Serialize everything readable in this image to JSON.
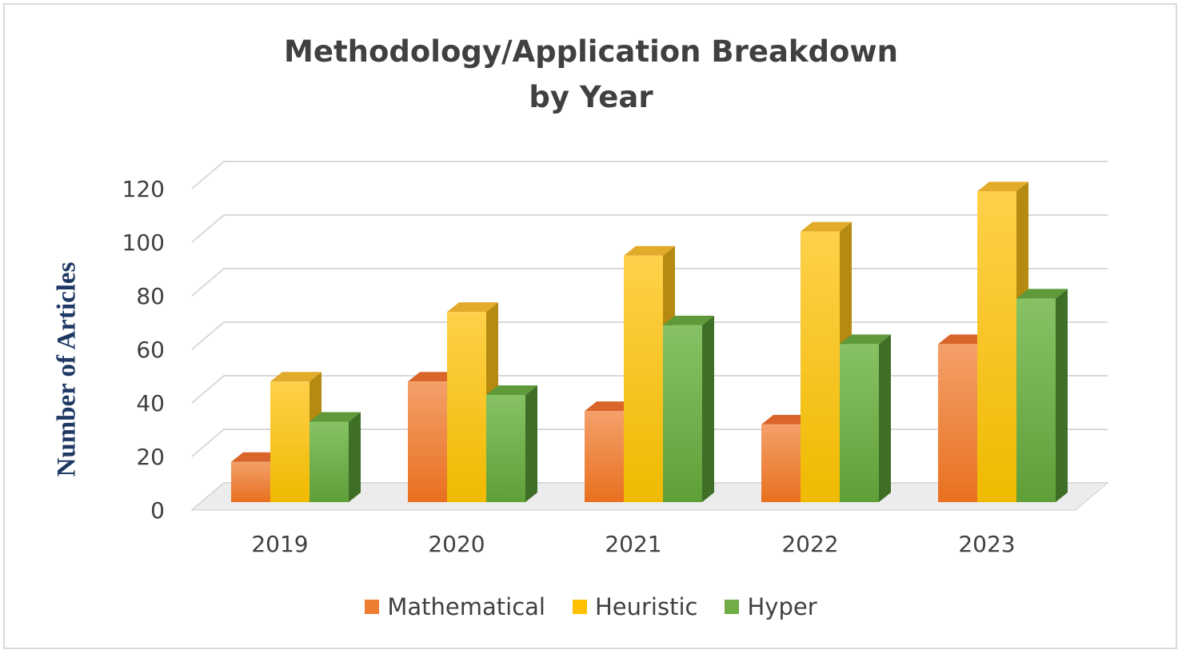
{
  "chart_data": {
    "type": "bar",
    "title": [
      "Methodology/Application Breakdown",
      "by Year"
    ],
    "xlabel": "",
    "ylabel": "Number of Articles",
    "ylim": [
      0,
      120
    ],
    "yticks": [
      0,
      20,
      40,
      60,
      80,
      100,
      120
    ],
    "grid": true,
    "legend_position": "bottom",
    "categories": [
      "2019",
      "2020",
      "2021",
      "2022",
      "2023"
    ],
    "series": [
      {
        "name": "Mathematical",
        "values": [
          15,
          45,
          34,
          29,
          59
        ],
        "color": "#ed7d31"
      },
      {
        "name": "Heuristic",
        "values": [
          45,
          71,
          92,
          101,
          116
        ],
        "color": "#ffc000"
      },
      {
        "name": "Hyper",
        "values": [
          30,
          40,
          66,
          59,
          76
        ],
        "color": "#70ad47"
      }
    ]
  }
}
